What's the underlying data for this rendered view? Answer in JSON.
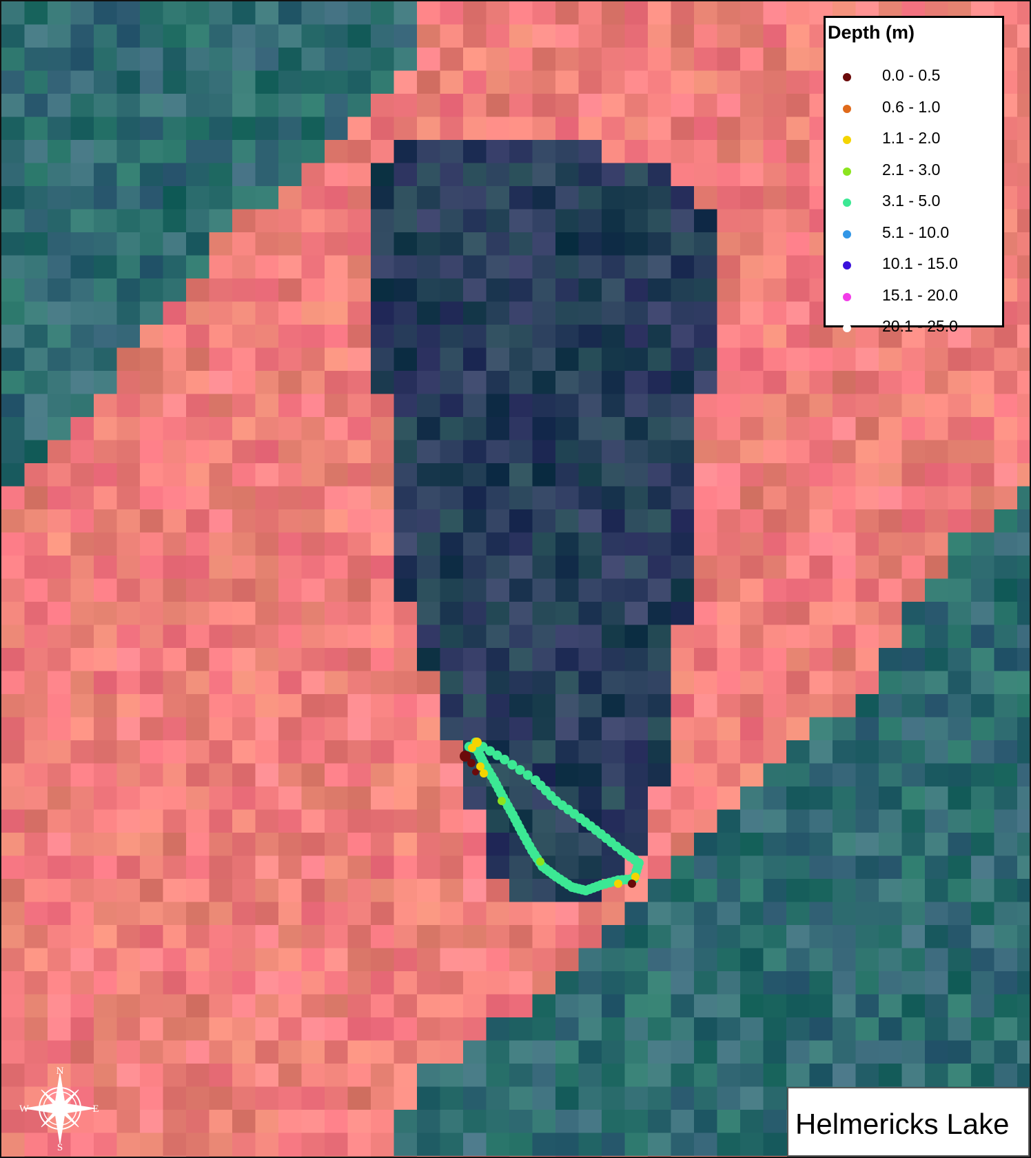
{
  "map": {
    "title": "Helmericks Lake",
    "legend": {
      "title": "Depth (m)",
      "items": [
        {
          "label": "0.0 - 0.5",
          "color": "#6b0a0a"
        },
        {
          "label": "0.6 - 1.0",
          "color": "#e06a1a"
        },
        {
          "label": "1.1 - 2.0",
          "color": "#f4d400"
        },
        {
          "label": "2.1 - 3.0",
          "color": "#8ce41e"
        },
        {
          "label": "3.1 - 5.0",
          "color": "#3ce894"
        },
        {
          "label": "5.1 - 10.0",
          "color": "#3296e6"
        },
        {
          "label": "10.1 - 15.0",
          "color": "#3a10dc"
        },
        {
          "label": "15.1 - 20.0",
          "color": "#f23ce8"
        },
        {
          "label": "20.1 - 25.0",
          "color": "#ffffff"
        }
      ]
    },
    "compass": {
      "north": "N",
      "south": "S",
      "east": "E",
      "west": "W"
    },
    "colors": {
      "land": "#f07f7c",
      "tundra_water": "#2e6b70",
      "lake": "#273d5a",
      "border": "#111111"
    },
    "icons": {
      "compass": "compass-rose-icon",
      "sounding": "depth-point-icon"
    }
  }
}
